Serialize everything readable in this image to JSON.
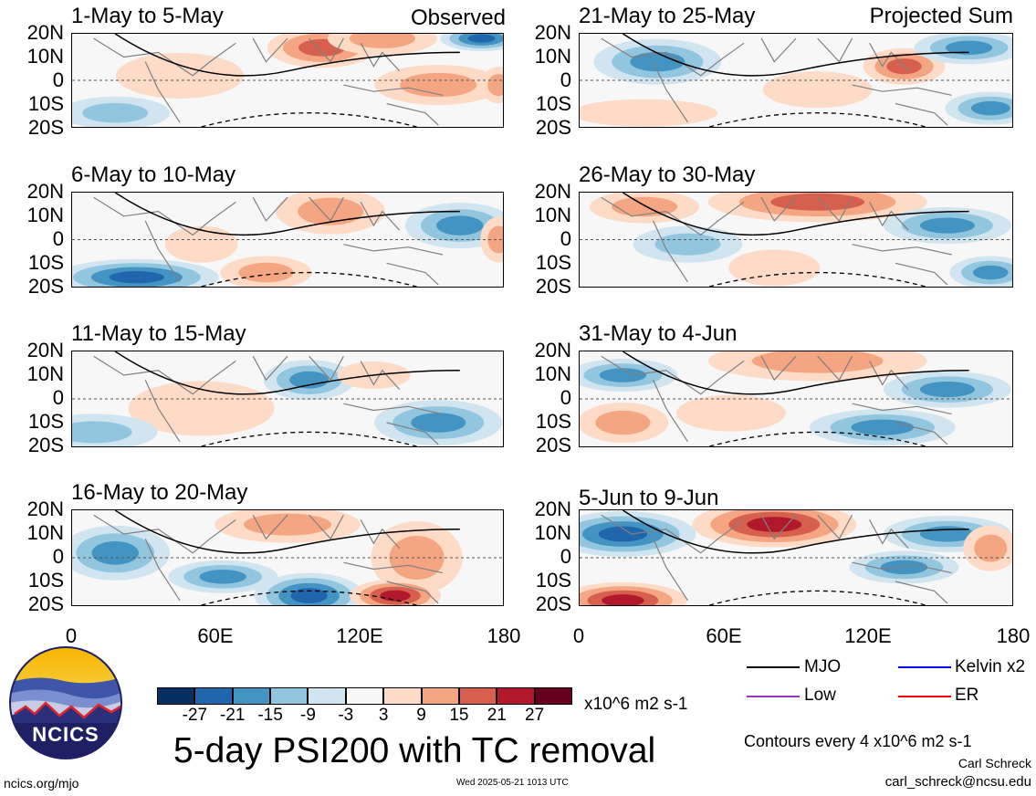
{
  "panels": [
    {
      "title": "1-May to 5-May",
      "tag": "Observed"
    },
    {
      "title": "21-May to 25-May",
      "tag": "Projected Sum"
    },
    {
      "title": "6-May to 10-May",
      "tag": ""
    },
    {
      "title": "26-May to 30-May",
      "tag": ""
    },
    {
      "title": "11-May to 15-May",
      "tag": ""
    },
    {
      "title": "31-May to 4-Jun",
      "tag": ""
    },
    {
      "title": "16-May to 20-May",
      "tag": ""
    },
    {
      "title": "5-Jun to 9-Jun",
      "tag": ""
    }
  ],
  "lat_labels": [
    "20N",
    "10N",
    "0",
    "10S",
    "20S"
  ],
  "lon_labels": [
    "0",
    "60E",
    "120E",
    "180"
  ],
  "colorbar": {
    "colors": [
      "#053061",
      "#2166ac",
      "#4393c3",
      "#92c5de",
      "#d1e5f0",
      "#f7f7f7",
      "#fddbc7",
      "#f4a582",
      "#d6604d",
      "#b2182b",
      "#67001f"
    ],
    "ticks": [
      "-27",
      "-21",
      "-15",
      "-9",
      "-3",
      "3",
      "9",
      "15",
      "21",
      "27"
    ],
    "units": "x10^6 m2 s-1"
  },
  "main_title": "5-day PSI200 with TC removal",
  "legend": [
    {
      "label": "MJO",
      "color": "#000000"
    },
    {
      "label": "Kelvin x2",
      "color": "#0000ff"
    },
    {
      "label": "Low",
      "color": "#9933cc"
    },
    {
      "label": "ER",
      "color": "#ff0000"
    }
  ],
  "contour_note": "Contours every 4 x10^6 m2 s-1",
  "author": "Carl Schreck",
  "email": "carl_schreck@ncsu.edu",
  "website": "ncics.org/mjo",
  "timestamp": "Wed 2025-05-21 1013 UTC",
  "logo_text": "NCICS"
}
